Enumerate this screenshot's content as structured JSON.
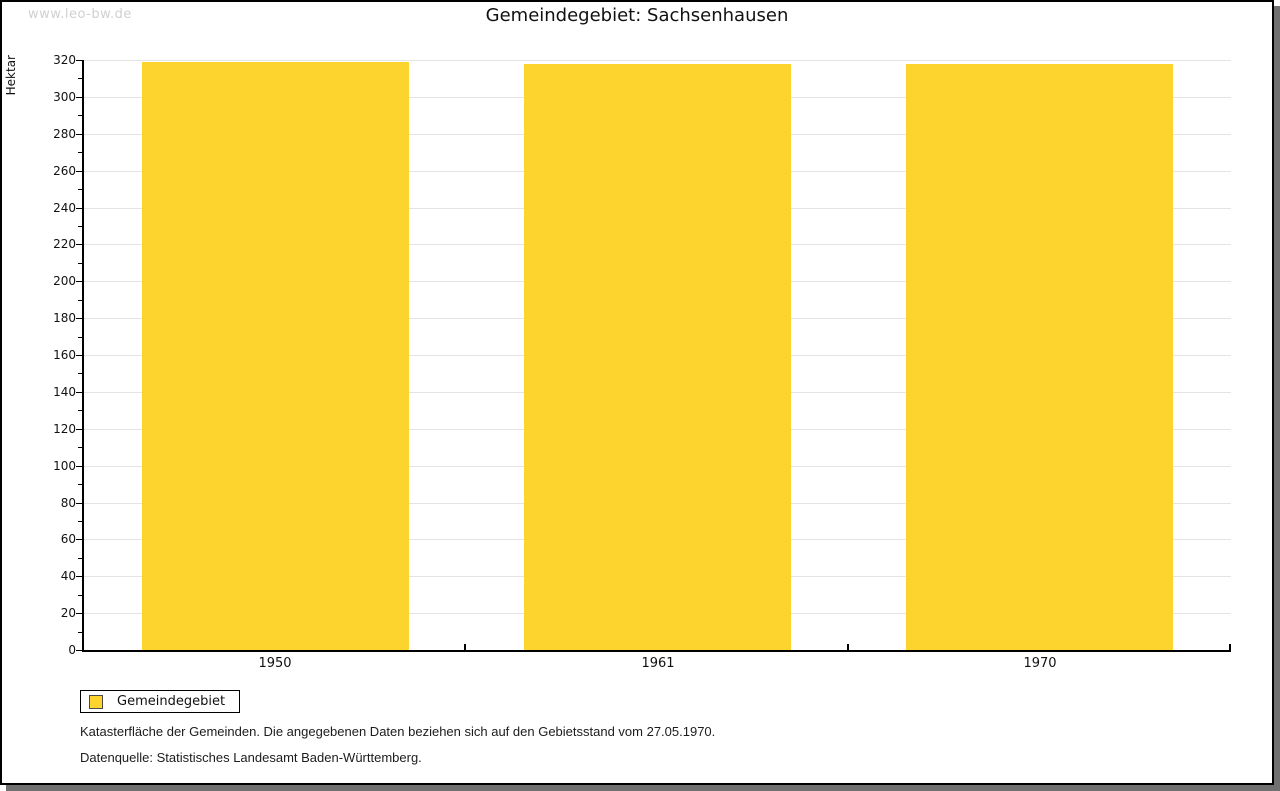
{
  "watermark": "www.leo-bw.de",
  "title": "Gemeindegebiet: Sachsenhausen",
  "chart_data": {
    "type": "bar",
    "title": "Gemeindegebiet: Sachsenhausen",
    "xlabel": "",
    "ylabel": "Hektar",
    "categories": [
      "1950",
      "1961",
      "1970"
    ],
    "series": [
      {
        "name": "Gemeindegebiet",
        "values": [
          319,
          318,
          318
        ]
      }
    ],
    "ylim": [
      0,
      320
    ],
    "ytick_step": 20,
    "yminor_step": 10,
    "grid": true,
    "legend_position": "bottom-left"
  },
  "legend": {
    "items": [
      {
        "label": "Gemeindegebiet",
        "color": "#fdd32e"
      }
    ]
  },
  "footer": {
    "line1": "Katasterfläche der Gemeinden. Die angegebenen Daten beziehen sich auf den Gebietsstand vom 27.05.1970.",
    "line2": "Datenquelle: Statistisches Landesamt Baden-Württemberg."
  },
  "colors": {
    "bar": "#fdd32e",
    "grid": "#e4e4e4",
    "axis": "#000000",
    "watermark": "#d0d0d0",
    "frame_shadow": "#707070"
  }
}
